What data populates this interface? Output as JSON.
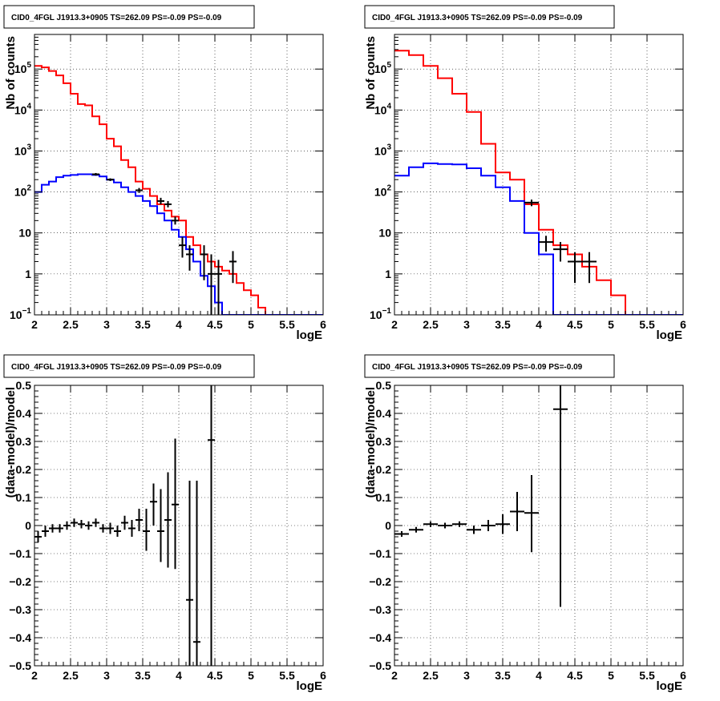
{
  "chart_data": [
    {
      "id": "counts_left",
      "type": "histogram",
      "title": "CID0_4FGL J1913.3+0905 TS=262.09 PS=-0.09 PS=-0.09",
      "xlabel": "logE",
      "ylabel": "Nb of counts",
      "xlim": [
        2,
        6
      ],
      "ylim": [
        0.1,
        700000
      ],
      "log_y": true,
      "grid": true,
      "x_ticks": [
        "2",
        "2.5",
        "3",
        "3.5",
        "4",
        "4.5",
        "5",
        "5.5",
        "6"
      ],
      "y_ticks": [
        {
          "v": 0.1,
          "label": "10",
          "exp": "−1"
        },
        {
          "v": 1,
          "label": "1",
          "exp": ""
        },
        {
          "v": 10,
          "label": "10",
          "exp": ""
        },
        {
          "v": 100,
          "label": "10",
          "exp": "2"
        },
        {
          "v": 1000,
          "label": "10",
          "exp": "3"
        },
        {
          "v": 10000,
          "label": "10",
          "exp": "4"
        },
        {
          "v": 100000,
          "label": "10",
          "exp": "5"
        }
      ],
      "bin_edges": [
        2.0,
        2.1,
        2.2,
        2.3,
        2.4,
        2.5,
        2.6,
        2.7,
        2.8,
        2.9,
        3.0,
        3.1,
        3.2,
        3.3,
        3.4,
        3.5,
        3.6,
        3.7,
        3.8,
        3.9,
        4.0,
        4.1,
        4.2,
        4.3,
        4.4,
        4.5,
        4.6,
        4.7,
        4.8,
        4.9,
        5.0,
        5.1,
        5.2,
        5.3,
        5.4,
        5.5,
        5.6,
        5.7,
        5.8,
        5.9,
        6.0
      ],
      "series": [
        {
          "color": "#ff0000",
          "values": [
            120000,
            110000,
            90000,
            70000,
            45000,
            25000,
            14000,
            13000,
            7000,
            4500,
            2000,
            1300,
            600,
            400,
            180,
            120,
            80,
            50,
            35,
            25,
            20,
            8,
            5,
            3,
            2,
            1.5,
            1.2,
            1.0,
            0.6,
            0.4,
            0.3,
            0.15,
            0.1,
            0.1,
            0.1,
            0.1,
            0.1,
            0.1,
            0.1,
            0.1
          ]
        },
        {
          "color": "#0000ff",
          "values": [
            100,
            150,
            180,
            230,
            250,
            260,
            270,
            270,
            260,
            240,
            200,
            170,
            130,
            100,
            80,
            60,
            45,
            30,
            20,
            12,
            8,
            4,
            2,
            0.9,
            0.5,
            0.2,
            0.1,
            0.1,
            0.1,
            0.1,
            0.1,
            0.1,
            0.1,
            0.1,
            0.1,
            0.1,
            0.1,
            0.1,
            0.1,
            0.1
          ]
        }
      ],
      "points": [
        {
          "x": 2.85,
          "y": 270,
          "xerr": 0.05,
          "ylo": 250,
          "yhi": 290
        },
        {
          "x": 3.05,
          "y": 200,
          "xerr": 0.05,
          "ylo": 185,
          "yhi": 215
        },
        {
          "x": 3.45,
          "y": 110,
          "xerr": 0.05,
          "ylo": 95,
          "yhi": 125
        },
        {
          "x": 3.75,
          "y": 60,
          "xerr": 0.05,
          "ylo": 50,
          "yhi": 72
        },
        {
          "x": 3.85,
          "y": 50,
          "xerr": 0.05,
          "ylo": 42,
          "yhi": 60
        },
        {
          "x": 3.95,
          "y": 20,
          "xerr": 0.05,
          "ylo": 16,
          "yhi": 25
        },
        {
          "x": 4.05,
          "y": 5,
          "xerr": 0.05,
          "ylo": 2.5,
          "yhi": 8
        },
        {
          "x": 4.15,
          "y": 3,
          "xerr": 0.05,
          "ylo": 1.2,
          "yhi": 5
        },
        {
          "x": 4.35,
          "y": 3,
          "xerr": 0.05,
          "ylo": 0.7,
          "yhi": 5
        },
        {
          "x": 4.45,
          "y": 1,
          "xerr": 0.05,
          "ylo": 0.1,
          "yhi": 3
        },
        {
          "x": 4.55,
          "y": 1,
          "xerr": 0.05,
          "ylo": 0.1,
          "yhi": 2.2
        },
        {
          "x": 4.75,
          "y": 2,
          "xerr": 0.05,
          "ylo": 0.6,
          "yhi": 3.6
        }
      ]
    },
    {
      "id": "counts_right",
      "type": "histogram",
      "title": "CID0_4FGL J1913.3+0905 TS=262.09 PS=-0.09 PS=-0.09",
      "xlabel": "logE",
      "ylabel": "Nb of counts",
      "xlim": [
        2,
        6
      ],
      "ylim": [
        0.1,
        700000
      ],
      "log_y": true,
      "grid": true,
      "x_ticks": [
        "2",
        "2.5",
        "3",
        "3.5",
        "4",
        "4.5",
        "5",
        "5.5",
        "6"
      ],
      "y_ticks": [
        {
          "v": 0.1,
          "label": "10",
          "exp": "−1"
        },
        {
          "v": 1,
          "label": "1",
          "exp": ""
        },
        {
          "v": 10,
          "label": "10",
          "exp": ""
        },
        {
          "v": 100,
          "label": "10",
          "exp": "2"
        },
        {
          "v": 1000,
          "label": "10",
          "exp": "3"
        },
        {
          "v": 10000,
          "label": "10",
          "exp": "4"
        },
        {
          "v": 100000,
          "label": "10",
          "exp": "5"
        }
      ],
      "bin_edges": [
        2.0,
        2.2,
        2.4,
        2.6,
        2.8,
        3.0,
        3.2,
        3.4,
        3.6,
        3.8,
        4.0,
        4.2,
        4.4,
        4.6,
        4.8,
        5.0,
        5.2,
        5.4,
        5.6,
        5.8,
        6.0
      ],
      "series": [
        {
          "color": "#ff0000",
          "values": [
            280000,
            220000,
            120000,
            60000,
            25000,
            9000,
            1500,
            300,
            200,
            50,
            12,
            5,
            3,
            1.5,
            0.7,
            0.3,
            0.1,
            0.1,
            0.1,
            0.1
          ]
        },
        {
          "color": "#0000ff",
          "values": [
            250,
            400,
            500,
            480,
            470,
            380,
            250,
            130,
            60,
            10,
            3,
            0.1,
            0.1,
            0.1,
            0.1,
            0.1,
            0.1,
            0.1,
            0.1,
            0.1
          ]
        }
      ],
      "points": [
        {
          "x": 3.9,
          "y": 55,
          "xerr": 0.1,
          "ylo": 45,
          "yhi": 65
        },
        {
          "x": 4.1,
          "y": 6,
          "xerr": 0.1,
          "ylo": 3.5,
          "yhi": 8.5
        },
        {
          "x": 4.3,
          "y": 4,
          "xerr": 0.1,
          "ylo": 2,
          "yhi": 6
        },
        {
          "x": 4.5,
          "y": 2,
          "xerr": 0.1,
          "ylo": 0.6,
          "yhi": 3.4
        },
        {
          "x": 4.7,
          "y": 2,
          "xerr": 0.1,
          "ylo": 0.6,
          "yhi": 3.4
        }
      ]
    },
    {
      "id": "resid_left",
      "type": "scatter",
      "title": "CID0_4FGL J1913.3+0905 TS=262.09 PS=-0.09 PS=-0.09",
      "xlabel": "logE",
      "ylabel": "(data-model)/model",
      "xlim": [
        2,
        6
      ],
      "ylim": [
        -0.5,
        0.5
      ],
      "log_y": false,
      "grid": true,
      "x_ticks": [
        "2",
        "2.5",
        "3",
        "3.5",
        "4",
        "4.5",
        "5",
        "5.5",
        "6"
      ],
      "y_ticks": [
        {
          "v": -0.5,
          "label": "−0.5",
          "exp": ""
        },
        {
          "v": -0.4,
          "label": "−0.4",
          "exp": ""
        },
        {
          "v": -0.3,
          "label": "−0.3",
          "exp": ""
        },
        {
          "v": -0.2,
          "label": "−0.2",
          "exp": ""
        },
        {
          "v": -0.1,
          "label": "−0.1",
          "exp": ""
        },
        {
          "v": 0,
          "label": "0",
          "exp": ""
        },
        {
          "v": 0.1,
          "label": "0.1",
          "exp": ""
        },
        {
          "v": 0.2,
          "label": "0.2",
          "exp": ""
        },
        {
          "v": 0.3,
          "label": "0.3",
          "exp": ""
        },
        {
          "v": 0.4,
          "label": "0.4",
          "exp": ""
        },
        {
          "v": 0.5,
          "label": "0.5",
          "exp": ""
        }
      ],
      "points": [
        {
          "x": 2.05,
          "y": -0.04,
          "xerr": 0.05,
          "ylo": -0.06,
          "yhi": -0.02
        },
        {
          "x": 2.15,
          "y": -0.02,
          "xerr": 0.05,
          "ylo": -0.04,
          "yhi": 0.0
        },
        {
          "x": 2.25,
          "y": -0.01,
          "xerr": 0.05,
          "ylo": -0.025,
          "yhi": 0.005
        },
        {
          "x": 2.35,
          "y": -0.01,
          "xerr": 0.05,
          "ylo": -0.025,
          "yhi": 0.005
        },
        {
          "x": 2.45,
          "y": 0.0,
          "xerr": 0.05,
          "ylo": -0.015,
          "yhi": 0.015
        },
        {
          "x": 2.55,
          "y": 0.01,
          "xerr": 0.05,
          "ylo": -0.005,
          "yhi": 0.025
        },
        {
          "x": 2.65,
          "y": 0.005,
          "xerr": 0.05,
          "ylo": -0.01,
          "yhi": 0.02
        },
        {
          "x": 2.75,
          "y": 0.0,
          "xerr": 0.05,
          "ylo": -0.015,
          "yhi": 0.015
        },
        {
          "x": 2.85,
          "y": 0.01,
          "xerr": 0.05,
          "ylo": -0.005,
          "yhi": 0.025
        },
        {
          "x": 2.95,
          "y": -0.01,
          "xerr": 0.05,
          "ylo": -0.025,
          "yhi": 0.005
        },
        {
          "x": 3.05,
          "y": -0.01,
          "xerr": 0.05,
          "ylo": -0.03,
          "yhi": 0.01
        },
        {
          "x": 3.15,
          "y": -0.02,
          "xerr": 0.05,
          "ylo": -0.04,
          "yhi": 0.0
        },
        {
          "x": 3.25,
          "y": 0.01,
          "xerr": 0.05,
          "ylo": -0.015,
          "yhi": 0.035
        },
        {
          "x": 3.35,
          "y": -0.01,
          "xerr": 0.05,
          "ylo": -0.04,
          "yhi": 0.02
        },
        {
          "x": 3.45,
          "y": 0.02,
          "xerr": 0.05,
          "ylo": -0.02,
          "yhi": 0.06
        },
        {
          "x": 3.55,
          "y": -0.02,
          "xerr": 0.05,
          "ylo": -0.09,
          "yhi": 0.06
        },
        {
          "x": 3.65,
          "y": 0.085,
          "xerr": 0.05,
          "ylo": 0.0,
          "yhi": 0.15
        },
        {
          "x": 3.75,
          "y": -0.02,
          "xerr": 0.05,
          "ylo": -0.13,
          "yhi": 0.13
        },
        {
          "x": 3.85,
          "y": 0.02,
          "xerr": 0.05,
          "ylo": -0.15,
          "yhi": 0.19
        },
        {
          "x": 3.95,
          "y": 0.075,
          "xerr": 0.05,
          "ylo": -0.155,
          "yhi": 0.31
        },
        {
          "x": 4.15,
          "y": -0.265,
          "xerr": 0.05,
          "ylo": -0.5,
          "yhi": 0.16
        },
        {
          "x": 4.25,
          "y": -0.415,
          "xerr": 0.05,
          "ylo": -0.5,
          "yhi": 0.16
        },
        {
          "x": 4.45,
          "y": 0.305,
          "xerr": 0.05,
          "ylo": -0.5,
          "yhi": 0.5
        }
      ]
    },
    {
      "id": "resid_right",
      "type": "scatter",
      "title": "CID0_4FGL J1913.3+0905 TS=262.09 PS=-0.09 PS=-0.09",
      "xlabel": "logE",
      "ylabel": "(data-model)/model",
      "xlim": [
        2,
        6
      ],
      "ylim": [
        -0.5,
        0.5
      ],
      "log_y": false,
      "grid": true,
      "x_ticks": [
        "2",
        "2.5",
        "3",
        "3.5",
        "4",
        "4.5",
        "5",
        "5.5",
        "6"
      ],
      "y_ticks": [
        {
          "v": -0.5,
          "label": "−0.5",
          "exp": ""
        },
        {
          "v": -0.4,
          "label": "−0.4",
          "exp": ""
        },
        {
          "v": -0.3,
          "label": "−0.3",
          "exp": ""
        },
        {
          "v": -0.2,
          "label": "−0.2",
          "exp": ""
        },
        {
          "v": -0.1,
          "label": "−0.1",
          "exp": ""
        },
        {
          "v": 0,
          "label": "0",
          "exp": ""
        },
        {
          "v": 0.1,
          "label": "0.1",
          "exp": ""
        },
        {
          "v": 0.2,
          "label": "0.2",
          "exp": ""
        },
        {
          "v": 0.3,
          "label": "0.3",
          "exp": ""
        },
        {
          "v": 0.4,
          "label": "0.4",
          "exp": ""
        },
        {
          "v": 0.5,
          "label": "0.5",
          "exp": ""
        }
      ],
      "points": [
        {
          "x": 2.1,
          "y": -0.03,
          "xerr": 0.1,
          "ylo": -0.04,
          "yhi": -0.02
        },
        {
          "x": 2.3,
          "y": -0.015,
          "xerr": 0.1,
          "ylo": -0.025,
          "yhi": -0.005
        },
        {
          "x": 2.5,
          "y": 0.005,
          "xerr": 0.1,
          "ylo": -0.005,
          "yhi": 0.015
        },
        {
          "x": 2.7,
          "y": 0.0,
          "xerr": 0.1,
          "ylo": -0.01,
          "yhi": 0.01
        },
        {
          "x": 2.9,
          "y": 0.005,
          "xerr": 0.1,
          "ylo": -0.005,
          "yhi": 0.015
        },
        {
          "x": 3.1,
          "y": -0.015,
          "xerr": 0.1,
          "ylo": -0.03,
          "yhi": 0.0
        },
        {
          "x": 3.3,
          "y": 0.0,
          "xerr": 0.1,
          "ylo": -0.02,
          "yhi": 0.02
        },
        {
          "x": 3.5,
          "y": 0.005,
          "xerr": 0.1,
          "ylo": -0.03,
          "yhi": 0.04
        },
        {
          "x": 3.7,
          "y": 0.05,
          "xerr": 0.1,
          "ylo": -0.02,
          "yhi": 0.12
        },
        {
          "x": 3.9,
          "y": 0.045,
          "xerr": 0.1,
          "ylo": -0.095,
          "yhi": 0.18
        },
        {
          "x": 4.3,
          "y": 0.415,
          "xerr": 0.1,
          "ylo": -0.29,
          "yhi": 0.5
        }
      ]
    }
  ]
}
